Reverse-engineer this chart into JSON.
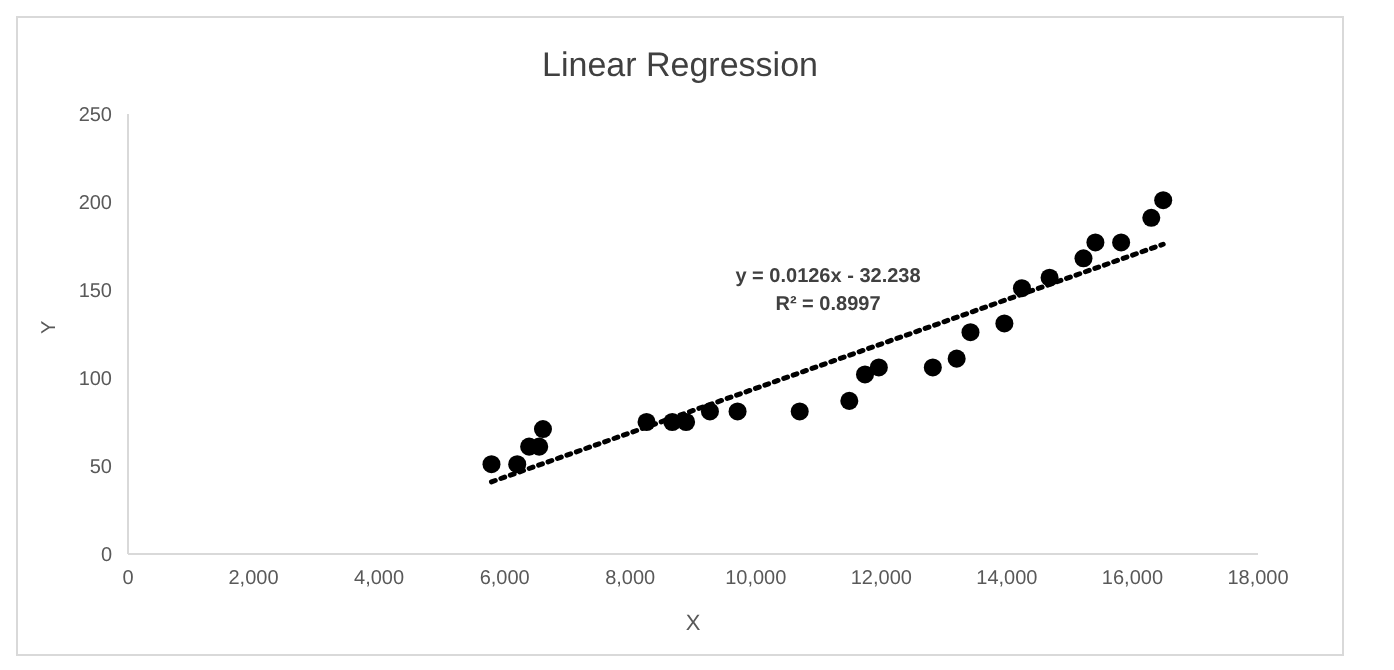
{
  "chart_data": {
    "type": "scatter",
    "title": "Linear Regression",
    "xlabel": "X",
    "ylabel": "Y",
    "xlim": [
      0,
      18000
    ],
    "xticks": [
      0,
      {
        "value": 2000,
        "label": "2,000"
      },
      {
        "value": 4000,
        "label": "4,000"
      },
      {
        "value": 6000,
        "label": "6,000"
      },
      {
        "value": 8000,
        "label": "8,000"
      },
      {
        "value": 10000,
        "label": "10,000"
      },
      {
        "value": 12000,
        "label": "12,000"
      },
      {
        "value": 14000,
        "label": "14,000"
      },
      {
        "value": 16000,
        "label": "16,000"
      },
      {
        "value": 18000,
        "label": "18,000"
      }
    ],
    "ylim": [
      0,
      250
    ],
    "yticks": [
      0,
      50,
      100,
      150,
      200,
      250
    ],
    "series": [
      {
        "color": "#000000",
        "marker": "circle",
        "x": [
          5790,
          6200,
          6390,
          6550,
          6610,
          8260,
          8670,
          8890,
          9270,
          9710,
          10700,
          11490,
          11740,
          11960,
          12820,
          13200,
          13420,
          13960,
          14240,
          14680,
          15220,
          15410,
          15820,
          16300,
          16490
        ],
        "values": [
          51,
          51,
          61,
          61,
          71,
          75,
          75,
          75,
          81,
          81,
          81,
          87,
          102,
          106,
          106,
          111,
          126,
          131,
          151,
          157,
          168,
          177,
          177,
          191,
          201
        ]
      },
      {
        "type": "line",
        "color": "#000000",
        "line_style": "dotted",
        "x": [
          5790,
          16490
        ],
        "values": [
          41,
          176
        ]
      }
    ],
    "annotations": [
      "y = 0.0126x - 32.238",
      "R² = 0.8997"
    ]
  }
}
